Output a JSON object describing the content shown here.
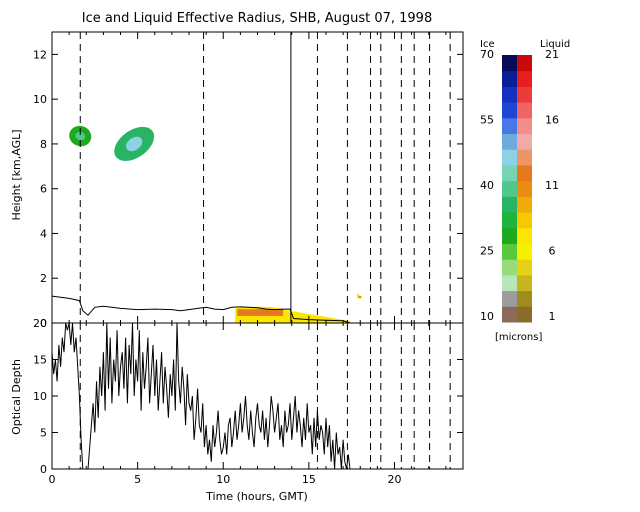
{
  "chart_data": [
    {
      "type": "heatmap",
      "title": "Ice and Liquid Effective Radius, SHB, August 07, 1998",
      "xlabel": "",
      "ylabel": "Height [km,AGL]",
      "xlim": [
        0,
        24
      ],
      "ylim": [
        0,
        13
      ],
      "yticks": [
        0,
        2,
        4,
        6,
        8,
        10,
        12
      ],
      "xticks": [
        0,
        5,
        10,
        15,
        20
      ],
      "grid": false,
      "colorbar": {
        "units_label": "[microns]",
        "ice": {
          "label": "Ice",
          "ticks": [
            10,
            25,
            40,
            55,
            70
          ],
          "colors": [
            "#8c6a5a",
            "#9c9c9c",
            "#b9e6b9",
            "#96dc78",
            "#5ac83c",
            "#1eaa1e",
            "#1eb43c",
            "#28b464",
            "#50c88c",
            "#78d2b4",
            "#8cd2e6",
            "#6eaadc",
            "#4678e6",
            "#1e46d2",
            "#1432be",
            "#0a1e96",
            "#0a0a5a"
          ]
        },
        "liquid": {
          "label": "Liquid",
          "ticks": [
            1,
            6,
            11,
            16,
            21
          ],
          "colors": [
            "#8c6a28",
            "#a08c1e",
            "#c8b41e",
            "#e6d214",
            "#f5f000",
            "#fae600",
            "#f5c800",
            "#f0aa0a",
            "#eb8c14",
            "#e6781e",
            "#eb9664",
            "#f0aaaa",
            "#f58c8c",
            "#f06464",
            "#eb3c3c",
            "#e61e1e",
            "#c80a0a"
          ]
        }
      },
      "cloud_ice": [
        {
          "x": [
            1.0,
            2.3
          ],
          "y": [
            7.9,
            8.8
          ],
          "radius": 30
        },
        {
          "x": [
            4.0,
            5.6
          ],
          "y": [
            7.0,
            9.0
          ],
          "radius": 38
        }
      ],
      "cloud_liquid": [
        {
          "x": [
            10.7,
            17.4
          ],
          "y": [
            0.0,
            0.75
          ],
          "radius": 7
        },
        {
          "x": [
            17.8,
            18.1
          ],
          "y": [
            1.1,
            1.35
          ],
          "radius": 7
        }
      ],
      "cloud_base": {
        "x": [
          0,
          0.5,
          1.0,
          1.6,
          1.8,
          2.1,
          2.5,
          3.0,
          3.5,
          4.0,
          5.0,
          6.0,
          7.0,
          7.5,
          8.0,
          8.5,
          9.0,
          9.5,
          10.0,
          10.5,
          11.0,
          11.5,
          12.0,
          12.5,
          13.0,
          13.5,
          13.9,
          14.1,
          15.0,
          16.0,
          17.0,
          17.4
        ],
        "y": [
          1.2,
          1.15,
          1.1,
          1.0,
          0.55,
          0.35,
          0.7,
          0.75,
          0.7,
          0.65,
          0.6,
          0.62,
          0.6,
          0.55,
          0.6,
          0.65,
          0.7,
          0.62,
          0.6,
          0.7,
          0.72,
          0.7,
          0.68,
          0.62,
          0.6,
          0.62,
          0.62,
          0.2,
          0.15,
          0.12,
          0.1,
          0.0
        ]
      },
      "vertical_solid": [
        13.95
      ],
      "vertical_dashed": [
        1.65,
        8.85,
        15.5,
        17.25,
        18.6,
        19.2,
        20.4,
        21.15,
        22.05,
        23.25
      ]
    },
    {
      "type": "line",
      "title": "",
      "xlabel": "Time (hours, GMT)",
      "ylabel": "Optical Depth",
      "xlim": [
        0,
        24
      ],
      "ylim": [
        0,
        20
      ],
      "xticks": [
        0,
        5,
        10,
        15,
        20
      ],
      "yticks": [
        0,
        5,
        10,
        15,
        20
      ],
      "grid": false,
      "series": [
        {
          "name": "",
          "x": [
            0,
            0.1,
            0.2,
            0.3,
            0.4,
            0.5,
            0.6,
            0.7,
            0.8,
            0.9,
            1.0,
            1.1,
            1.2,
            1.3,
            1.4,
            1.5,
            1.6,
            1.7,
            1.8,
            1.9,
            2.0,
            2.1,
            2.2,
            2.3,
            2.4,
            2.5,
            2.6,
            2.7,
            2.8,
            2.9,
            3.0,
            3.1,
            3.2,
            3.3,
            3.4,
            3.5,
            3.6,
            3.7,
            3.8,
            3.9,
            4.0,
            4.1,
            4.2,
            4.3,
            4.4,
            4.5,
            4.6,
            4.7,
            4.8,
            4.9,
            5.0,
            5.1,
            5.2,
            5.3,
            5.4,
            5.5,
            5.6,
            5.7,
            5.8,
            5.9,
            6.0,
            6.1,
            6.2,
            6.3,
            6.4,
            6.5,
            6.6,
            6.7,
            6.8,
            6.9,
            7.0,
            7.1,
            7.2,
            7.3,
            7.4,
            7.5,
            7.6,
            7.7,
            7.8,
            7.9,
            8.0,
            8.1,
            8.2,
            8.3,
            8.4,
            8.5,
            8.6,
            8.7,
            8.8,
            8.9,
            9.0,
            9.1,
            9.2,
            9.3,
            9.4,
            9.5,
            9.6,
            9.7,
            9.8,
            9.9,
            10.0,
            10.1,
            10.2,
            10.3,
            10.4,
            10.5,
            10.6,
            10.7,
            10.8,
            10.9,
            11.0,
            11.1,
            11.2,
            11.3,
            11.4,
            11.5,
            11.6,
            11.7,
            11.8,
            11.9,
            12.0,
            12.1,
            12.2,
            12.3,
            12.4,
            12.5,
            12.6,
            12.7,
            12.8,
            12.9,
            13.0,
            13.1,
            13.2,
            13.3,
            13.4,
            13.5,
            13.6,
            13.7,
            13.8,
            13.9,
            14.0,
            14.1,
            14.2,
            14.3,
            14.4,
            14.5,
            14.6,
            14.7,
            14.8,
            14.9,
            15.0,
            15.1,
            15.2,
            15.3,
            15.4,
            15.5,
            15.6,
            15.7,
            15.8,
            15.9,
            16.0,
            16.1,
            16.2,
            16.3,
            16.4,
            16.5,
            16.6,
            16.7,
            16.8,
            16.9,
            17.0,
            17.1,
            17.2,
            17.3,
            17.4
          ],
          "y": [
            16,
            13,
            15,
            12,
            17,
            14,
            18,
            16,
            20,
            19,
            20,
            17,
            20,
            16,
            18,
            14,
            10,
            4,
            0,
            0,
            0,
            0,
            3,
            6,
            9,
            5,
            12,
            7,
            14,
            10,
            16,
            8,
            20,
            11,
            18,
            9,
            15,
            12,
            19,
            10,
            14,
            16,
            11,
            18,
            9,
            17,
            13,
            20,
            10,
            15,
            12,
            19,
            8,
            16,
            11,
            14,
            18,
            9,
            13,
            17,
            10,
            15,
            8,
            12,
            16,
            9,
            14,
            11,
            7,
            13,
            10,
            15,
            8,
            20,
            12,
            9,
            14,
            11,
            6,
            13,
            9,
            8,
            10,
            4,
            7,
            11,
            6,
            5,
            9,
            3,
            6,
            2,
            4,
            1,
            6,
            3,
            5,
            8,
            4,
            2,
            3,
            5,
            2,
            6,
            7,
            3,
            5,
            8,
            4,
            6,
            9,
            5,
            7,
            10,
            6,
            4,
            8,
            5,
            3,
            7,
            9,
            6,
            5,
            8,
            4,
            7,
            3,
            6,
            10,
            8,
            5,
            7,
            9,
            4,
            6,
            3,
            8,
            5,
            6,
            9,
            4,
            7,
            10,
            5,
            8,
            6,
            3,
            7,
            4,
            9,
            5,
            6,
            2,
            7,
            3,
            8,
            4,
            6,
            5,
            2,
            7,
            3,
            6,
            1,
            4,
            0,
            5,
            2,
            3,
            0,
            4,
            1,
            0,
            2,
            0
          ]
        }
      ],
      "vertical_dashed": [
        1.65,
        15.5,
        17.25,
        18.6,
        19.2,
        20.4,
        21.15,
        22.05,
        23.25
      ]
    }
  ]
}
